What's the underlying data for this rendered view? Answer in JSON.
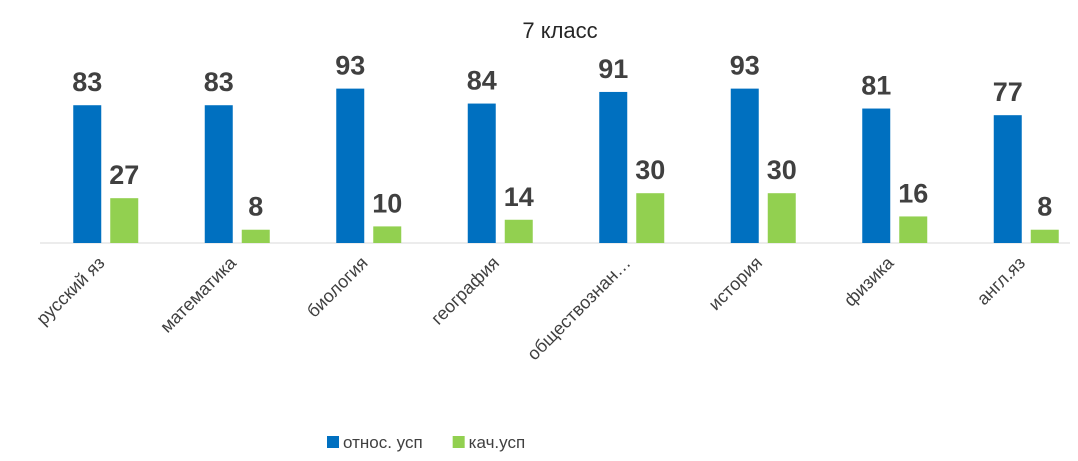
{
  "chart_data": {
    "type": "bar",
    "title": "7 класс",
    "categories": [
      "русский яз",
      "математика",
      "биология",
      "география",
      "обществознан…",
      "история",
      "физика",
      "англ.яз"
    ],
    "series": [
      {
        "name": "относ. усп",
        "color": "#0070c0",
        "values": [
          83,
          83,
          93,
          84,
          91,
          93,
          81,
          77
        ]
      },
      {
        "name": "кач.усп",
        "color": "#92d050",
        "values": [
          27,
          8,
          10,
          14,
          30,
          30,
          16,
          8
        ]
      }
    ],
    "ylim": [
      0,
      100
    ],
    "legend": "bottom"
  }
}
